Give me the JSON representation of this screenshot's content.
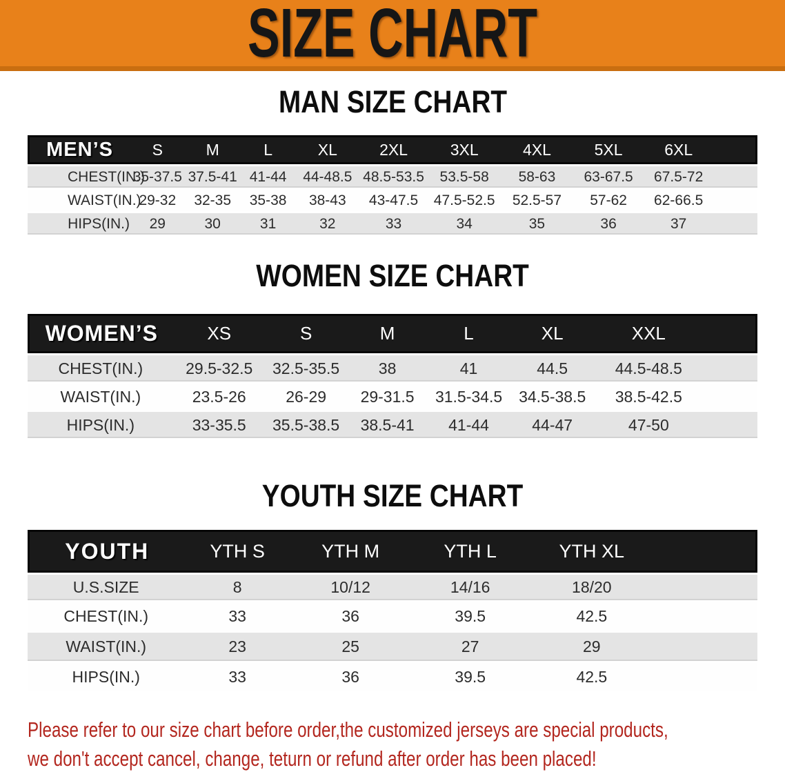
{
  "banner": {
    "title": "SIZE CHART"
  },
  "colors": {
    "banner_orange": "#E8811A",
    "banner_edge": "#C96E10",
    "header_black": "#1A1A1A",
    "row_gray": "#E4E4E4",
    "note_red": "#B3271F"
  },
  "sections": [
    {
      "title": "MAN SIZE CHART",
      "header_label": "MEN’S",
      "columns": [
        "S",
        "M",
        "L",
        "XL",
        "2XL",
        "3XL",
        "4XL",
        "5XL",
        "6XL"
      ],
      "rows": [
        {
          "label": "CHEST(IN.)",
          "values": [
            "35-37.5",
            "37.5-41",
            "41-44",
            "44-48.5",
            "48.5-53.5",
            "53.5-58",
            "58-63",
            "63-67.5",
            "67.5-72"
          ]
        },
        {
          "label": "WAIST(IN.)",
          "values": [
            "29-32",
            "32-35",
            "35-38",
            "38-43",
            "43-47.5",
            "47.5-52.5",
            "52.5-57",
            "57-62",
            "62-66.5"
          ]
        },
        {
          "label": "HIPS(IN.)",
          "values": [
            "29",
            "30",
            "31",
            "32",
            "33",
            "34",
            "35",
            "36",
            "37"
          ]
        }
      ]
    },
    {
      "title": "WOMEN SIZE CHART",
      "header_label": "WOMEN’S",
      "columns": [
        "XS",
        "S",
        "M",
        "L",
        "XL",
        "XXL"
      ],
      "rows": [
        {
          "label": "CHEST(IN.)",
          "values": [
            "29.5-32.5",
            "32.5-35.5",
            "38",
            "41",
            "44.5",
            "44.5-48.5"
          ]
        },
        {
          "label": "WAIST(IN.)",
          "values": [
            "23.5-26",
            "26-29",
            "29-31.5",
            "31.5-34.5",
            "34.5-38.5",
            "38.5-42.5"
          ]
        },
        {
          "label": "HIPS(IN.)",
          "values": [
            "33-35.5",
            "35.5-38.5",
            "38.5-41",
            "41-44",
            "44-47",
            "47-50"
          ]
        }
      ]
    },
    {
      "title": "YOUTH SIZE CHART",
      "header_label": "YOUTH",
      "columns": [
        "YTH S",
        "YTH M",
        "YTH L",
        "YTH XL"
      ],
      "rows": [
        {
          "label": "U.S.SIZE",
          "values": [
            "8",
            "10/12",
            "14/16",
            "18/20"
          ]
        },
        {
          "label": "CHEST(IN.)",
          "values": [
            "33",
            "36",
            "39.5",
            "42.5"
          ]
        },
        {
          "label": "WAIST(IN.)",
          "values": [
            "23",
            "25",
            "27",
            "29"
          ]
        },
        {
          "label": "HIPS(IN.)",
          "values": [
            "33",
            "36",
            "39.5",
            "42.5"
          ]
        }
      ]
    }
  ],
  "footer": {
    "line1": "Please refer to our size chart before order,the customized jerseys are special products,",
    "line2": "we don't accept cancel, change, teturn or refund after order has been placed!"
  }
}
